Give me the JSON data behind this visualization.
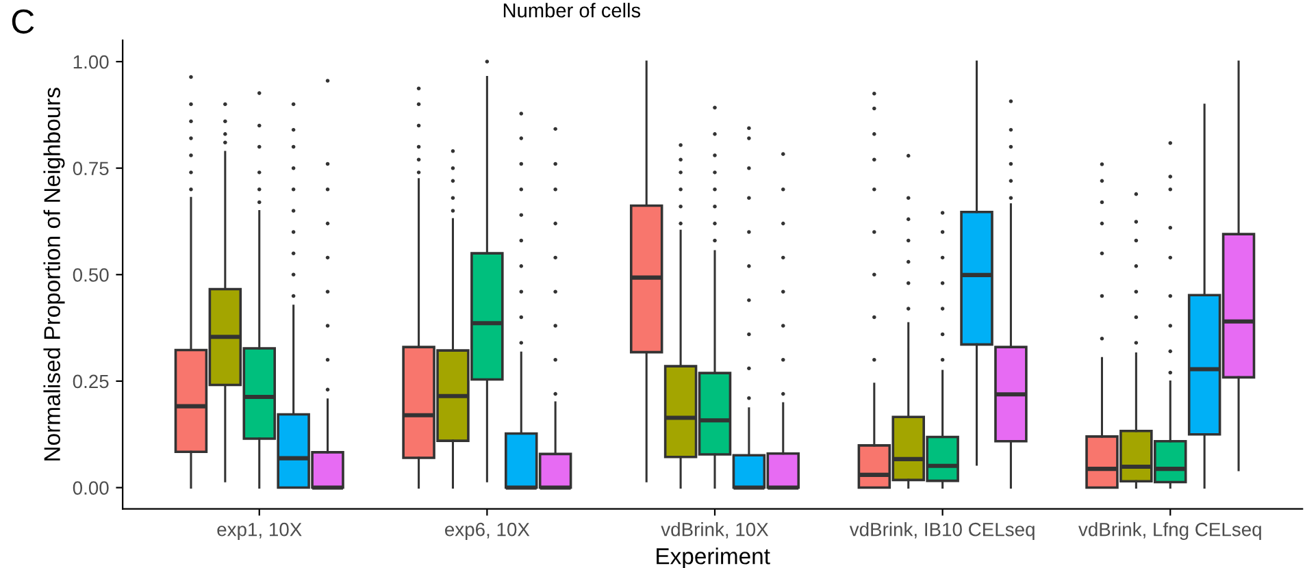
{
  "chart_data": {
    "type": "box",
    "xlabel": "Experiment",
    "ylabel": "Normalised Proportion of Neighbours",
    "legend_title": "Number of cells",
    "annotations": [
      "C"
    ],
    "categories": [
      "exp1, 10X",
      "exp6, 10X",
      "vdBrink, 10X",
      "vdBrink, IB10 CELseq",
      "vdBrink, Lfng CELseq"
    ],
    "ylim": [
      -0.05,
      1.05
    ],
    "yticks": [
      {
        "value": 0,
        "label": "0.00"
      },
      {
        "value": 0.25,
        "label": "0.25"
      },
      {
        "value": 0.5,
        "label": "0.50"
      },
      {
        "value": 0.75,
        "label": "0.75"
      },
      {
        "value": 1,
        "label": "1.00"
      }
    ],
    "grid": false,
    "legend": false,
    "series": [
      {
        "color": "#f8766d",
        "boxes": [
          {
            "low": 0,
            "q1": 0.084,
            "median": 0.191,
            "q3": 0.323,
            "high": 0.68,
            "outliers": [
              0.7,
              0.74,
              0.78,
              0.82,
              0.86,
              0.9,
              0.964
            ]
          },
          {
            "low": 0,
            "q1": 0.07,
            "median": 0.17,
            "q3": 0.33,
            "high": 0.724,
            "outliers": [
              0.74,
              0.77,
              0.8,
              0.85,
              0.9,
              0.937
            ]
          },
          {
            "low": 0.015,
            "q1": 0.318,
            "median": 0.493,
            "q3": 0.662,
            "high": 1.0
          },
          {
            "low": 0,
            "q1": 0,
            "median": 0.03,
            "q3": 0.099,
            "high": 0.244,
            "outliers": [
              0.3,
              0.4,
              0.5,
              0.6,
              0.7,
              0.77,
              0.83,
              0.89,
              0.925
            ]
          },
          {
            "low": 0,
            "q1": 0,
            "median": 0.044,
            "q3": 0.12,
            "high": 0.304,
            "outliers": [
              0.35,
              0.45,
              0.55,
              0.62,
              0.67,
              0.72,
              0.759
            ]
          }
        ]
      },
      {
        "color": "#a3a500",
        "boxes": [
          {
            "low": 0.015,
            "q1": 0.241,
            "median": 0.354,
            "q3": 0.466,
            "high": 0.788,
            "outliers": [
              0.81,
              0.83,
              0.86,
              0.9
            ]
          },
          {
            "low": 0,
            "q1": 0.11,
            "median": 0.215,
            "q3": 0.322,
            "high": 0.63,
            "outliers": [
              0.65,
              0.68,
              0.72,
              0.75,
              0.79
            ]
          },
          {
            "low": 0,
            "q1": 0.072,
            "median": 0.164,
            "q3": 0.285,
            "high": 0.603,
            "outliers": [
              0.62,
              0.66,
              0.7,
              0.74,
              0.77,
              0.804
            ]
          },
          {
            "low": 0,
            "q1": 0.018,
            "median": 0.067,
            "q3": 0.166,
            "high": 0.386,
            "outliers": [
              0.42,
              0.48,
              0.53,
              0.58,
              0.63,
              0.68,
              0.779
            ]
          },
          {
            "low": 0,
            "q1": 0.015,
            "median": 0.049,
            "q3": 0.133,
            "high": 0.315,
            "outliers": [
              0.34,
              0.4,
              0.46,
              0.52,
              0.58,
              0.624,
              0.689
            ]
          }
        ]
      },
      {
        "color": "#00bf7d",
        "boxes": [
          {
            "low": 0,
            "q1": 0.115,
            "median": 0.213,
            "q3": 0.327,
            "high": 0.649,
            "outliers": [
              0.67,
              0.7,
              0.74,
              0.8,
              0.85,
              0.926
            ]
          },
          {
            "low": 0.015,
            "q1": 0.254,
            "median": 0.386,
            "q3": 0.55,
            "high": 0.964,
            "outliers": [
              1.0
            ]
          },
          {
            "low": 0,
            "q1": 0.078,
            "median": 0.158,
            "q3": 0.269,
            "high": 0.555,
            "outliers": [
              0.58,
              0.62,
              0.66,
              0.7,
              0.74,
              0.78,
              0.83,
              0.892
            ]
          },
          {
            "low": 0,
            "q1": 0.016,
            "median": 0.051,
            "q3": 0.119,
            "high": 0.274,
            "outliers": [
              0.3,
              0.36,
              0.42,
              0.48,
              0.54,
              0.6,
              0.645
            ]
          },
          {
            "low": 0,
            "q1": 0.013,
            "median": 0.044,
            "q3": 0.109,
            "high": 0.249,
            "outliers": [
              0.27,
              0.32,
              0.38,
              0.45,
              0.54,
              0.61,
              0.7,
              0.73,
              0.809
            ]
          }
        ]
      },
      {
        "color": "#00b0f6",
        "boxes": [
          {
            "low": 0,
            "q1": 0,
            "median": 0.069,
            "q3": 0.172,
            "high": 0.427,
            "outliers": [
              0.45,
              0.5,
              0.55,
              0.6,
              0.65,
              0.7,
              0.75,
              0.8,
              0.84,
              0.9
            ]
          },
          {
            "low": 0,
            "q1": 0,
            "median": 0,
            "q3": 0.127,
            "high": 0.317,
            "outliers": [
              0.34,
              0.4,
              0.46,
              0.52,
              0.58,
              0.64,
              0.7,
              0.76,
              0.82,
              0.878
            ]
          },
          {
            "low": 0,
            "q1": 0,
            "median": 0,
            "q3": 0.076,
            "high": 0.186,
            "outliers": [
              0.21,
              0.28,
              0.36,
              0.44,
              0.52,
              0.6,
              0.68,
              0.75,
              0.82,
              0.844
            ]
          },
          {
            "low": 0.054,
            "q1": 0.336,
            "median": 0.499,
            "q3": 0.647,
            "high": 1.0
          },
          {
            "low": 0,
            "q1": 0.125,
            "median": 0.278,
            "q3": 0.452,
            "high": 0.899
          }
        ]
      },
      {
        "color": "#e76bf3",
        "boxes": [
          {
            "low": 0,
            "q1": 0,
            "median": 0,
            "q3": 0.083,
            "high": 0.207,
            "outliers": [
              0.23,
              0.3,
              0.38,
              0.46,
              0.54,
              0.62,
              0.7,
              0.76,
              0.955
            ]
          },
          {
            "low": 0,
            "q1": 0,
            "median": 0,
            "q3": 0.079,
            "high": 0.2,
            "outliers": [
              0.22,
              0.3,
              0.38,
              0.46,
              0.54,
              0.62,
              0.7,
              0.76,
              0.842
            ]
          },
          {
            "low": 0,
            "q1": 0,
            "median": 0,
            "q3": 0.08,
            "high": 0.198,
            "outliers": [
              0.22,
              0.3,
              0.38,
              0.46,
              0.54,
              0.62,
              0.7,
              0.783
            ]
          },
          {
            "low": 0,
            "q1": 0.109,
            "median": 0.219,
            "q3": 0.33,
            "high": 0.665,
            "outliers": [
              0.68,
              0.72,
              0.76,
              0.8,
              0.84,
              0.907
            ]
          },
          {
            "low": 0.041,
            "q1": 0.259,
            "median": 0.39,
            "q3": 0.595,
            "high": 1.0
          }
        ]
      }
    ]
  }
}
